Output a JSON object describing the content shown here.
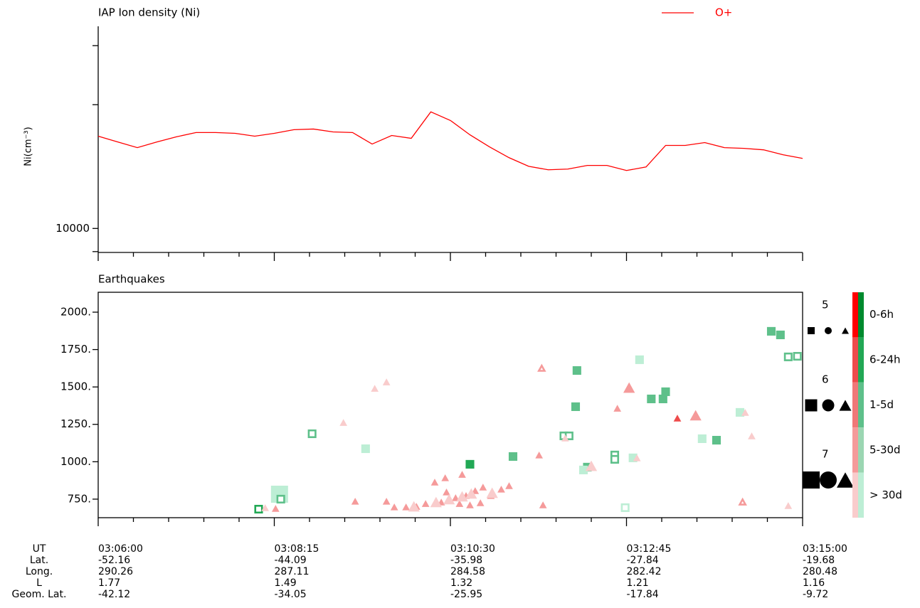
{
  "chart_data": [
    {
      "type": "line",
      "title": "IAP Ion density (Ni)",
      "y_label": "Ni(cm⁻³)",
      "log_y": true,
      "legend": "upper right",
      "x": [
        "03:06:00",
        "03:06:15",
        "03:06:30",
        "03:06:45",
        "03:07:00",
        "03:07:15",
        "03:07:30",
        "03:07:45",
        "03:08:00",
        "03:08:15",
        "03:08:30",
        "03:08:45",
        "03:09:00",
        "03:09:15",
        "03:09:30",
        "03:09:45",
        "03:10:00",
        "03:10:15",
        "03:10:30",
        "03:10:45",
        "03:11:00",
        "03:11:15",
        "03:11:30",
        "03:11:45",
        "03:12:00",
        "03:12:15",
        "03:12:30",
        "03:12:45",
        "03:13:00",
        "03:13:15",
        "03:13:30",
        "03:13:45",
        "03:14:00",
        "03:14:15",
        "03:14:30",
        "03:14:45",
        "03:15:00"
      ],
      "series": [
        {
          "name": "O+",
          "color": "#ff0000",
          "values": [
            55700,
            50000,
            45000,
            50000,
            55000,
            59600,
            59600,
            58700,
            55700,
            58700,
            62800,
            63600,
            60300,
            59600,
            48100,
            56400,
            53500,
            87500,
            74600,
            57100,
            45600,
            37300,
            31800,
            29800,
            30200,
            32300,
            32300,
            29400,
            31400,
            46900,
            46900,
            49400,
            45000,
            44400,
            43200,
            39400,
            36800
          ]
        }
      ],
      "xlim": [
        "03:06:00",
        "03:15:00"
      ],
      "xticks": [
        "03:06:00",
        "03:08:15",
        "03:10:30",
        "03:12:45",
        "03:15:00"
      ],
      "ylim": [
        6400,
        430000
      ],
      "yticks": [
        10000
      ],
      "y_minor_ticks": [
        6500,
        100000,
        300000
      ]
    },
    {
      "type": "scatter",
      "title": "Earthquakes",
      "xlim": [
        "03:06:00",
        "03:15:00"
      ],
      "xticks": [
        "03:06:00",
        "03:08:15",
        "03:10:30",
        "03:12:45",
        "03:15:00"
      ],
      "ylim": [
        626,
        2133
      ],
      "yticks": [
        {
          "value": 750,
          "label": "750."
        },
        {
          "value": 1000,
          "label": "1000."
        },
        {
          "value": 1250,
          "label": "1250."
        },
        {
          "value": 1500,
          "label": "1500."
        },
        {
          "value": 1750,
          "label": "1750."
        },
        {
          "value": 2000,
          "label": "2000."
        }
      ],
      "series": [
        {
          "marker": "square",
          "filled": true,
          "color": "#5ec08a",
          "x": [
            "03:14:36",
            "03:14:43",
            "03:12:07",
            "03:12:06",
            "03:11:18",
            "03:13:04",
            "03:13:13",
            "03:13:15",
            "03:13:54",
            "03:12:15"
          ],
          "values": [
            1872,
            1848,
            1610,
            1368,
            1035,
            1420,
            1420,
            1468,
            1144,
            964
          ],
          "sizes": [
            5.3,
            5.3,
            5.3,
            5.3,
            5.3,
            5.3,
            5.3,
            5.3,
            5.3,
            5.3
          ]
        },
        {
          "marker": "square",
          "filled": true,
          "color": "#22a855",
          "x": [
            "03:10:45"
          ],
          "values": [
            983
          ],
          "sizes": [
            5.3
          ]
        },
        {
          "marker": "square",
          "filled": true,
          "color": "#bdeed5",
          "x": [
            "03:12:55",
            "03:09:25",
            "03:13:43",
            "03:12:12",
            "03:14:12",
            "03:12:50",
            "03:08:19"
          ],
          "values": [
            1682,
            1087,
            1154,
            945,
            1330,
            1026,
            783
          ],
          "sizes": [
            5.3,
            5.3,
            5.3,
            5.3,
            5.3,
            5.3,
            7
          ]
        },
        {
          "marker": "square",
          "filled": false,
          "color": "#5ec08a",
          "x": [
            "03:08:44",
            "03:08:20",
            "03:11:57",
            "03:12:01",
            "03:12:36",
            "03:12:36",
            "03:14:49",
            "03:14:56"
          ],
          "values": [
            1187,
            750,
            1173,
            1173,
            1045,
            1016,
            1701,
            1705
          ],
          "sizes": [
            5.3,
            5.3,
            5.3,
            5.3,
            5.3,
            5.3,
            5.3,
            5.3
          ]
        },
        {
          "marker": "square",
          "filled": false,
          "color": "#22a855",
          "x": [
            "03:08:03"
          ],
          "values": [
            683
          ],
          "sizes": [
            5.3
          ]
        },
        {
          "marker": "square",
          "filled": false,
          "color": "#bdeed5",
          "x": [
            "03:12:44"
          ],
          "values": [
            693
          ],
          "sizes": [
            5.3
          ]
        },
        {
          "marker": "triangle",
          "filled": true,
          "color": "#f59a9a",
          "x": [
            "03:12:47",
            "03:13:38",
            "03:12:38",
            "03:11:38",
            "03:09:17",
            "03:11:41",
            "03:10:39",
            "03:10:26",
            "03:10:18",
            "03:10:27",
            "03:09:41",
            "03:09:47",
            "03:09:56",
            "03:10:04",
            "03:10:11",
            "03:10:23",
            "03:10:34",
            "03:10:42",
            "03:10:49",
            "03:10:55",
            "03:11:01",
            "03:11:09",
            "03:11:15",
            "03:10:37",
            "03:10:45",
            "03:10:53",
            "03:08:16"
          ],
          "values": [
            1496,
            1311,
            1358,
            1045,
            736,
            712,
            916,
            893,
            864,
            798,
            736,
            698,
            698,
            702,
            721,
            731,
            760,
            774,
            807,
            831,
            774,
            817,
            840,
            721,
            712,
            726,
            688
          ],
          "sizes": [
            5.9,
            5.9,
            5.1,
            5.1,
            5.1,
            5.1,
            5.1,
            5.1,
            5.1,
            5.1,
            5.1,
            5.1,
            5.1,
            5.1,
            5.1,
            5.1,
            5.1,
            5.1,
            5.1,
            5.1,
            5.1,
            5.1,
            5.1,
            5.1,
            5.1,
            5.1,
            5.1
          ]
        },
        {
          "marker": "triangle",
          "filled": true,
          "color": "#ee4b4b",
          "x": [
            "03:13:24"
          ],
          "values": [
            1292
          ],
          "sizes": [
            5.1
          ]
        },
        {
          "marker": "triangle",
          "filled": true,
          "color": "#f9cccc",
          "x": [
            "03:09:32",
            "03:09:41",
            "03:09:08",
            "03:14:16",
            "03:14:21",
            "03:14:49",
            "03:08:08",
            "03:12:18",
            "03:12:53",
            "03:11:58",
            "03:10:02",
            "03:10:19",
            "03:10:29",
            "03:10:39",
            "03:10:46",
            "03:11:02"
          ],
          "values": [
            1491,
            1534,
            1263,
            1330,
            1173,
            707,
            693,
            973,
            1026,
            1159,
            702,
            731,
            750,
            769,
            788,
            793
          ],
          "sizes": [
            5.1,
            5.1,
            5.1,
            5.1,
            5.1,
            5.1,
            5.1,
            5.9,
            5.1,
            5.1,
            5.9,
            5.9,
            5.9,
            5.9,
            5.9,
            5.9
          ]
        },
        {
          "marker": "triangle",
          "filled": false,
          "color": "#f59a9a",
          "x": [
            "03:11:40",
            "03:14:14"
          ],
          "values": [
            1625,
            731
          ],
          "sizes": [
            5.1,
            5.1
          ]
        }
      ],
      "size_legend": [
        5,
        6,
        7
      ],
      "color_legend": [
        {
          "label": "0-6h",
          "colors": [
            "#ff0000",
            "#008a2e"
          ]
        },
        {
          "label": "6-24h",
          "colors": [
            "#ee4b4b",
            "#22a855"
          ]
        },
        {
          "label": "1-5d",
          "colors": [
            "#f07878",
            "#5ec08a"
          ]
        },
        {
          "label": "5-30d",
          "colors": [
            "#f59a9a",
            "#9bd6b2"
          ]
        },
        {
          "label": "> 30d",
          "colors": [
            "#f9cccc",
            "#bdeed5"
          ]
        }
      ],
      "axis_table": {
        "row_labels": [
          "UT",
          "Lat.",
          "Long.",
          "L",
          "Geom. Lat."
        ],
        "rows": [
          [
            -52.16,
            -44.09,
            -35.98,
            -27.84,
            -19.68
          ],
          [
            290.26,
            287.11,
            284.58,
            282.42,
            280.48
          ],
          [
            1.77,
            1.49,
            1.32,
            1.21,
            1.16
          ],
          [
            -42.12,
            -34.05,
            -25.95,
            -17.84,
            -9.72
          ]
        ]
      }
    }
  ]
}
